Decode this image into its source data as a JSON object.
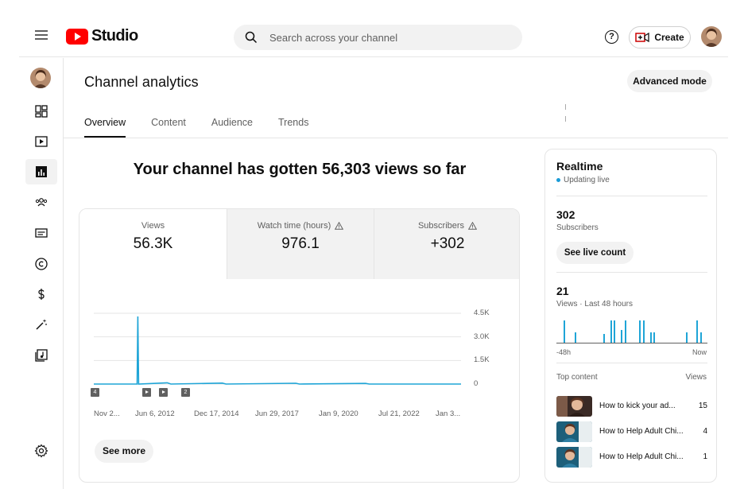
{
  "header": {
    "logo_text": "Studio",
    "search_placeholder": "Search across your channel",
    "help_label": "?",
    "create_label": "Create"
  },
  "sidenav": {
    "items": [
      {
        "name": "dashboard",
        "icon": "dashboard-icon"
      },
      {
        "name": "content",
        "icon": "content-icon"
      },
      {
        "name": "analytics",
        "icon": "analytics-icon",
        "active": true
      },
      {
        "name": "community",
        "icon": "community-icon"
      },
      {
        "name": "subtitles",
        "icon": "subtitles-icon"
      },
      {
        "name": "copyright",
        "icon": "copyright-icon"
      },
      {
        "name": "earn",
        "icon": "dollar-icon"
      },
      {
        "name": "customization",
        "icon": "magic-wand-icon"
      },
      {
        "name": "audio-library",
        "icon": "audio-library-icon"
      }
    ],
    "settings_icon": "gear-icon"
  },
  "page": {
    "title": "Channel analytics",
    "advanced_mode_label": "Advanced mode",
    "tabs": [
      {
        "label": "Overview",
        "active": true
      },
      {
        "label": "Content"
      },
      {
        "label": "Audience"
      },
      {
        "label": "Trends"
      }
    ],
    "headline": "Your channel has gotten 56,303 views so far"
  },
  "metrics": [
    {
      "label": "Views",
      "value": "56.3K"
    },
    {
      "label": "Watch time (hours)",
      "value": "976.1",
      "warning": true
    },
    {
      "label": "Subscribers",
      "value": "+302",
      "warning": true
    }
  ],
  "chart_data": {
    "type": "line",
    "y_ticks": [
      "4.5K",
      "3.0K",
      "1.5K",
      "0"
    ],
    "ylim": [
      0,
      4500
    ],
    "x_tick_labels": [
      "Nov 2...",
      "Jun 6, 2012",
      "Dec 17, 2014",
      "Jun 29, 2017",
      "Jan 9, 2020",
      "Jul 21, 2022",
      "Jan 3..."
    ],
    "series": [
      {
        "color": "#1fa5d7",
        "points": [
          [
            0,
            0
          ],
          [
            0.118,
            0
          ],
          [
            0.12,
            4300
          ],
          [
            0.122,
            0
          ],
          [
            0.2,
            80
          ],
          [
            0.21,
            0
          ],
          [
            0.35,
            60
          ],
          [
            0.36,
            0
          ],
          [
            0.55,
            50
          ],
          [
            0.56,
            0
          ],
          [
            0.74,
            40
          ],
          [
            0.75,
            0
          ],
          [
            1.0,
            0
          ]
        ]
      }
    ],
    "markers": [
      {
        "label": "4",
        "type": "count"
      },
      {
        "label": "",
        "type": "play"
      },
      {
        "label": "",
        "type": "play"
      },
      {
        "label": "2",
        "type": "count"
      }
    ]
  },
  "see_more_label": "See more",
  "realtime": {
    "title": "Realtime",
    "status": "Updating live",
    "subscribers_value": "302",
    "subscribers_label": "Subscribers",
    "see_live_label": "See live count",
    "views_value": "21",
    "views_label": "Views · Last 48 hours",
    "bars": [
      0,
      0,
      0.85,
      0,
      0,
      0.4,
      0,
      0,
      0,
      0,
      0,
      0,
      0,
      0.35,
      0,
      0.85,
      0.85,
      0,
      0.5,
      0.85,
      0,
      0,
      0,
      0.85,
      0.85,
      0,
      0.4,
      0.4,
      0,
      0,
      0,
      0,
      0,
      0,
      0,
      0,
      0.4,
      0,
      0,
      0.85,
      0.4,
      0
    ],
    "axis_start": "-48h",
    "axis_end": "Now",
    "top_content_label": "Top content",
    "views_col_label": "Views",
    "top_content": [
      {
        "title": "How to kick your ad...",
        "views": "15"
      },
      {
        "title": "How to Help Adult Chi...",
        "views": "4"
      },
      {
        "title": "How to Help Adult Chi...",
        "views": "1"
      }
    ]
  }
}
